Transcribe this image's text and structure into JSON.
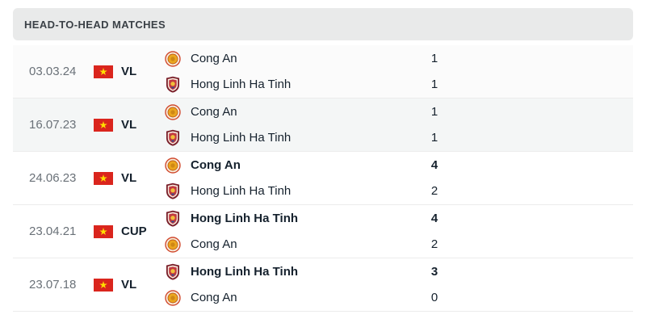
{
  "header": {
    "title": "HEAD-TO-HEAD MATCHES"
  },
  "colors": {
    "header_bg": "#e9eaea",
    "header_text": "#3b4147",
    "date_text": "#6a7178",
    "dark_text": "#15212d",
    "row_border": "#ececec",
    "flag_red": "#da251d",
    "flag_star_yellow": "#ffde00",
    "cong_an_logo_ring": "#d14b30",
    "hong_linh_shield": "#7a1f2a",
    "row_shades": [
      "#fbfbfb",
      "#f4f6f6",
      "#ffffff",
      "#ffffff",
      "#ffffff"
    ]
  },
  "matches": [
    {
      "date": "03.03.24",
      "competition": "VL",
      "flag": "vietnam",
      "rows": [
        {
          "team": "Cong An",
          "logo": "cong-an",
          "score": "1",
          "bold": false
        },
        {
          "team": "Hong Linh Ha Tinh",
          "logo": "hong-linh-ha-tinh",
          "score": "1",
          "bold": false
        }
      ]
    },
    {
      "date": "16.07.23",
      "competition": "VL",
      "flag": "vietnam",
      "rows": [
        {
          "team": "Cong An",
          "logo": "cong-an",
          "score": "1",
          "bold": false
        },
        {
          "team": "Hong Linh Ha Tinh",
          "logo": "hong-linh-ha-tinh",
          "score": "1",
          "bold": false
        }
      ]
    },
    {
      "date": "24.06.23",
      "competition": "VL",
      "flag": "vietnam",
      "rows": [
        {
          "team": "Cong An",
          "logo": "cong-an",
          "score": "4",
          "bold": true
        },
        {
          "team": "Hong Linh Ha Tinh",
          "logo": "hong-linh-ha-tinh",
          "score": "2",
          "bold": false
        }
      ]
    },
    {
      "date": "23.04.21",
      "competition": "CUP",
      "flag": "vietnam",
      "rows": [
        {
          "team": "Hong Linh Ha Tinh",
          "logo": "hong-linh-ha-tinh",
          "score": "4",
          "bold": true
        },
        {
          "team": "Cong An",
          "logo": "cong-an",
          "score": "2",
          "bold": false
        }
      ]
    },
    {
      "date": "23.07.18",
      "competition": "VL",
      "flag": "vietnam",
      "rows": [
        {
          "team": "Hong Linh Ha Tinh",
          "logo": "hong-linh-ha-tinh",
          "score": "3",
          "bold": true
        },
        {
          "team": "Cong An",
          "logo": "cong-an",
          "score": "0",
          "bold": false
        }
      ]
    }
  ]
}
